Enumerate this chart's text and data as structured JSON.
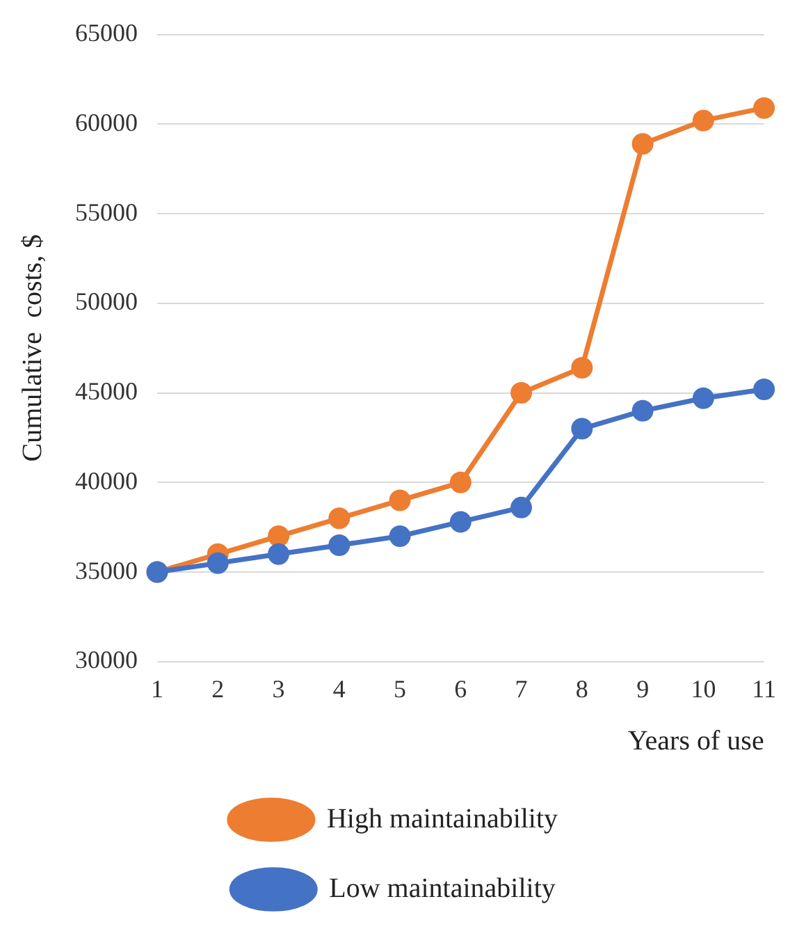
{
  "chart_data": {
    "type": "line",
    "xlabel": "Years of use",
    "ylabel": "Cumulative  costs, $",
    "categories": [
      "1",
      "2",
      "3",
      "4",
      "5",
      "6",
      "7",
      "8",
      "9",
      "10",
      "11"
    ],
    "series": [
      {
        "name": "High maintainability",
        "color": "#ed7d31",
        "values": [
          35000,
          36000,
          37000,
          38000,
          39000,
          40000,
          45000,
          46400,
          58900,
          60200,
          60900
        ]
      },
      {
        "name": "Low maintainability",
        "color": "#4472c4",
        "values": [
          35000,
          35500,
          36000,
          36500,
          37000,
          37800,
          38600,
          43000,
          44000,
          44700,
          45200
        ]
      }
    ],
    "ylim": [
      30000,
      65000
    ],
    "yticks": [
      30000,
      35000,
      40000,
      45000,
      50000,
      55000,
      60000,
      65000
    ],
    "grid": "y",
    "legend": "bottom",
    "marker": "circle",
    "line_style": "solid"
  }
}
